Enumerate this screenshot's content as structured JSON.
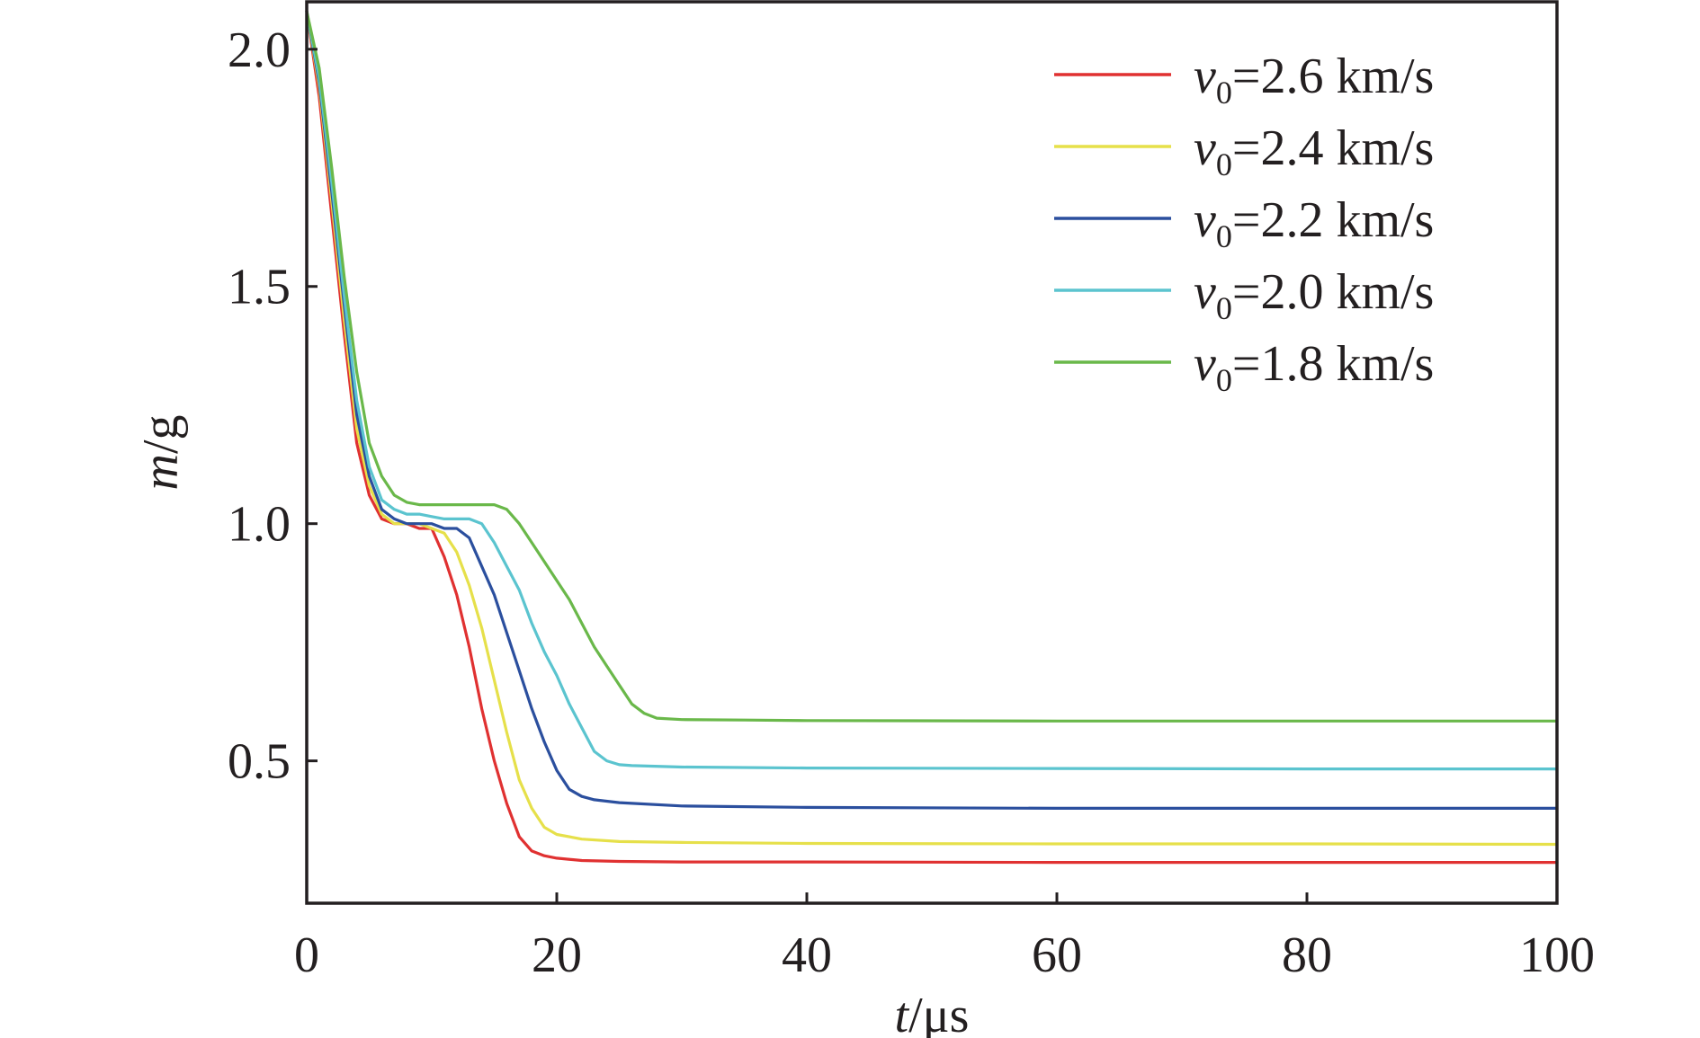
{
  "chart_data": {
    "type": "line",
    "xlabel": {
      "var": "t",
      "unit": "/μs"
    },
    "ylabel": {
      "var": "m",
      "unit": "/g"
    },
    "xlim": [
      0,
      100
    ],
    "ylim": [
      0.2,
      2.1
    ],
    "x_ticks": [
      0,
      20,
      40,
      60,
      80,
      100
    ],
    "x_tick_labels": [
      "0",
      "20",
      "40",
      "60",
      "80",
      "100"
    ],
    "y_ticks": [
      0.5,
      1.0,
      1.5,
      2.0
    ],
    "y_tick_labels": [
      "0.5",
      "1.0",
      "1.5",
      "2.0"
    ],
    "grid": false,
    "legend_position": "top-right",
    "series": [
      {
        "name": "v0=2.6 km/s",
        "legend": {
          "var": "v",
          "sub": "0",
          "text": "=2.6 km/s"
        },
        "color": "#e03131",
        "x": [
          0,
          1,
          2,
          3,
          4,
          5,
          6,
          7,
          8,
          9,
          10,
          11,
          12,
          13,
          14,
          15,
          16,
          17,
          18,
          19,
          20,
          22,
          25,
          30,
          40,
          60,
          80,
          100
        ],
        "y": [
          2.08,
          1.9,
          1.65,
          1.4,
          1.17,
          1.06,
          1.01,
          1.0,
          1.0,
          0.99,
          0.99,
          0.93,
          0.85,
          0.74,
          0.61,
          0.5,
          0.41,
          0.34,
          0.31,
          0.3,
          0.295,
          0.29,
          0.288,
          0.287,
          0.287,
          0.286,
          0.286,
          0.286
        ]
      },
      {
        "name": "v0=2.4 km/s",
        "legend": {
          "var": "v",
          "sub": "0",
          "text": "=2.4 km/s"
        },
        "color": "#e6e04a",
        "x": [
          0,
          1,
          2,
          3,
          4,
          5,
          6,
          7,
          8,
          9,
          10,
          11,
          12,
          13,
          14,
          15,
          16,
          17,
          18,
          19,
          20,
          22,
          25,
          30,
          40,
          60,
          80,
          100
        ],
        "y": [
          2.08,
          1.92,
          1.68,
          1.43,
          1.2,
          1.08,
          1.02,
          1.0,
          1.0,
          1.0,
          0.99,
          0.98,
          0.94,
          0.87,
          0.78,
          0.67,
          0.56,
          0.46,
          0.4,
          0.36,
          0.345,
          0.335,
          0.33,
          0.328,
          0.326,
          0.325,
          0.325,
          0.324
        ]
      },
      {
        "name": "v0=2.2 km/s",
        "legend": {
          "var": "v",
          "sub": "0",
          "text": "=2.2 km/s"
        },
        "color": "#2b4f9e",
        "x": [
          0,
          1,
          2,
          3,
          4,
          5,
          6,
          7,
          8,
          9,
          10,
          11,
          12,
          13,
          14,
          15,
          16,
          17,
          18,
          19,
          20,
          21,
          22,
          23,
          25,
          30,
          40,
          60,
          80,
          100
        ],
        "y": [
          2.08,
          1.93,
          1.7,
          1.46,
          1.23,
          1.1,
          1.03,
          1.01,
          1.0,
          1.0,
          1.0,
          0.99,
          0.99,
          0.97,
          0.91,
          0.85,
          0.77,
          0.69,
          0.61,
          0.54,
          0.48,
          0.44,
          0.425,
          0.418,
          0.412,
          0.405,
          0.402,
          0.4,
          0.4,
          0.4
        ]
      },
      {
        "name": "v0=2.0 km/s",
        "legend": {
          "var": "v",
          "sub": "0",
          "text": "=2.0 km/s"
        },
        "color": "#5bc4cf",
        "x": [
          0,
          1,
          2,
          3,
          4,
          5,
          6,
          7,
          8,
          9,
          10,
          11,
          12,
          13,
          14,
          15,
          16,
          17,
          18,
          19,
          20,
          21,
          22,
          23,
          24,
          25,
          26,
          30,
          40,
          60,
          80,
          100
        ],
        "y": [
          2.08,
          1.94,
          1.72,
          1.48,
          1.26,
          1.12,
          1.05,
          1.03,
          1.02,
          1.02,
          1.015,
          1.01,
          1.01,
          1.01,
          1.0,
          0.96,
          0.91,
          0.86,
          0.79,
          0.73,
          0.68,
          0.62,
          0.57,
          0.52,
          0.5,
          0.492,
          0.49,
          0.487,
          0.485,
          0.484,
          0.483,
          0.483
        ]
      },
      {
        "name": "v0=1.8 km/s",
        "legend": {
          "var": "v",
          "sub": "0",
          "text": "=1.8 km/s"
        },
        "color": "#6ab84a",
        "x": [
          0,
          1,
          2,
          3,
          4,
          5,
          6,
          7,
          8,
          9,
          10,
          11,
          12,
          13,
          14,
          15,
          16,
          17,
          18,
          19,
          20,
          21,
          22,
          23,
          24,
          25,
          26,
          27,
          28,
          30,
          35,
          40,
          60,
          80,
          100
        ],
        "y": [
          2.08,
          1.96,
          1.75,
          1.52,
          1.32,
          1.17,
          1.1,
          1.06,
          1.045,
          1.04,
          1.04,
          1.04,
          1.04,
          1.04,
          1.04,
          1.04,
          1.03,
          1.0,
          0.96,
          0.92,
          0.88,
          0.84,
          0.79,
          0.74,
          0.7,
          0.66,
          0.62,
          0.6,
          0.59,
          0.587,
          0.586,
          0.585,
          0.584,
          0.584,
          0.584
        ]
      }
    ]
  }
}
